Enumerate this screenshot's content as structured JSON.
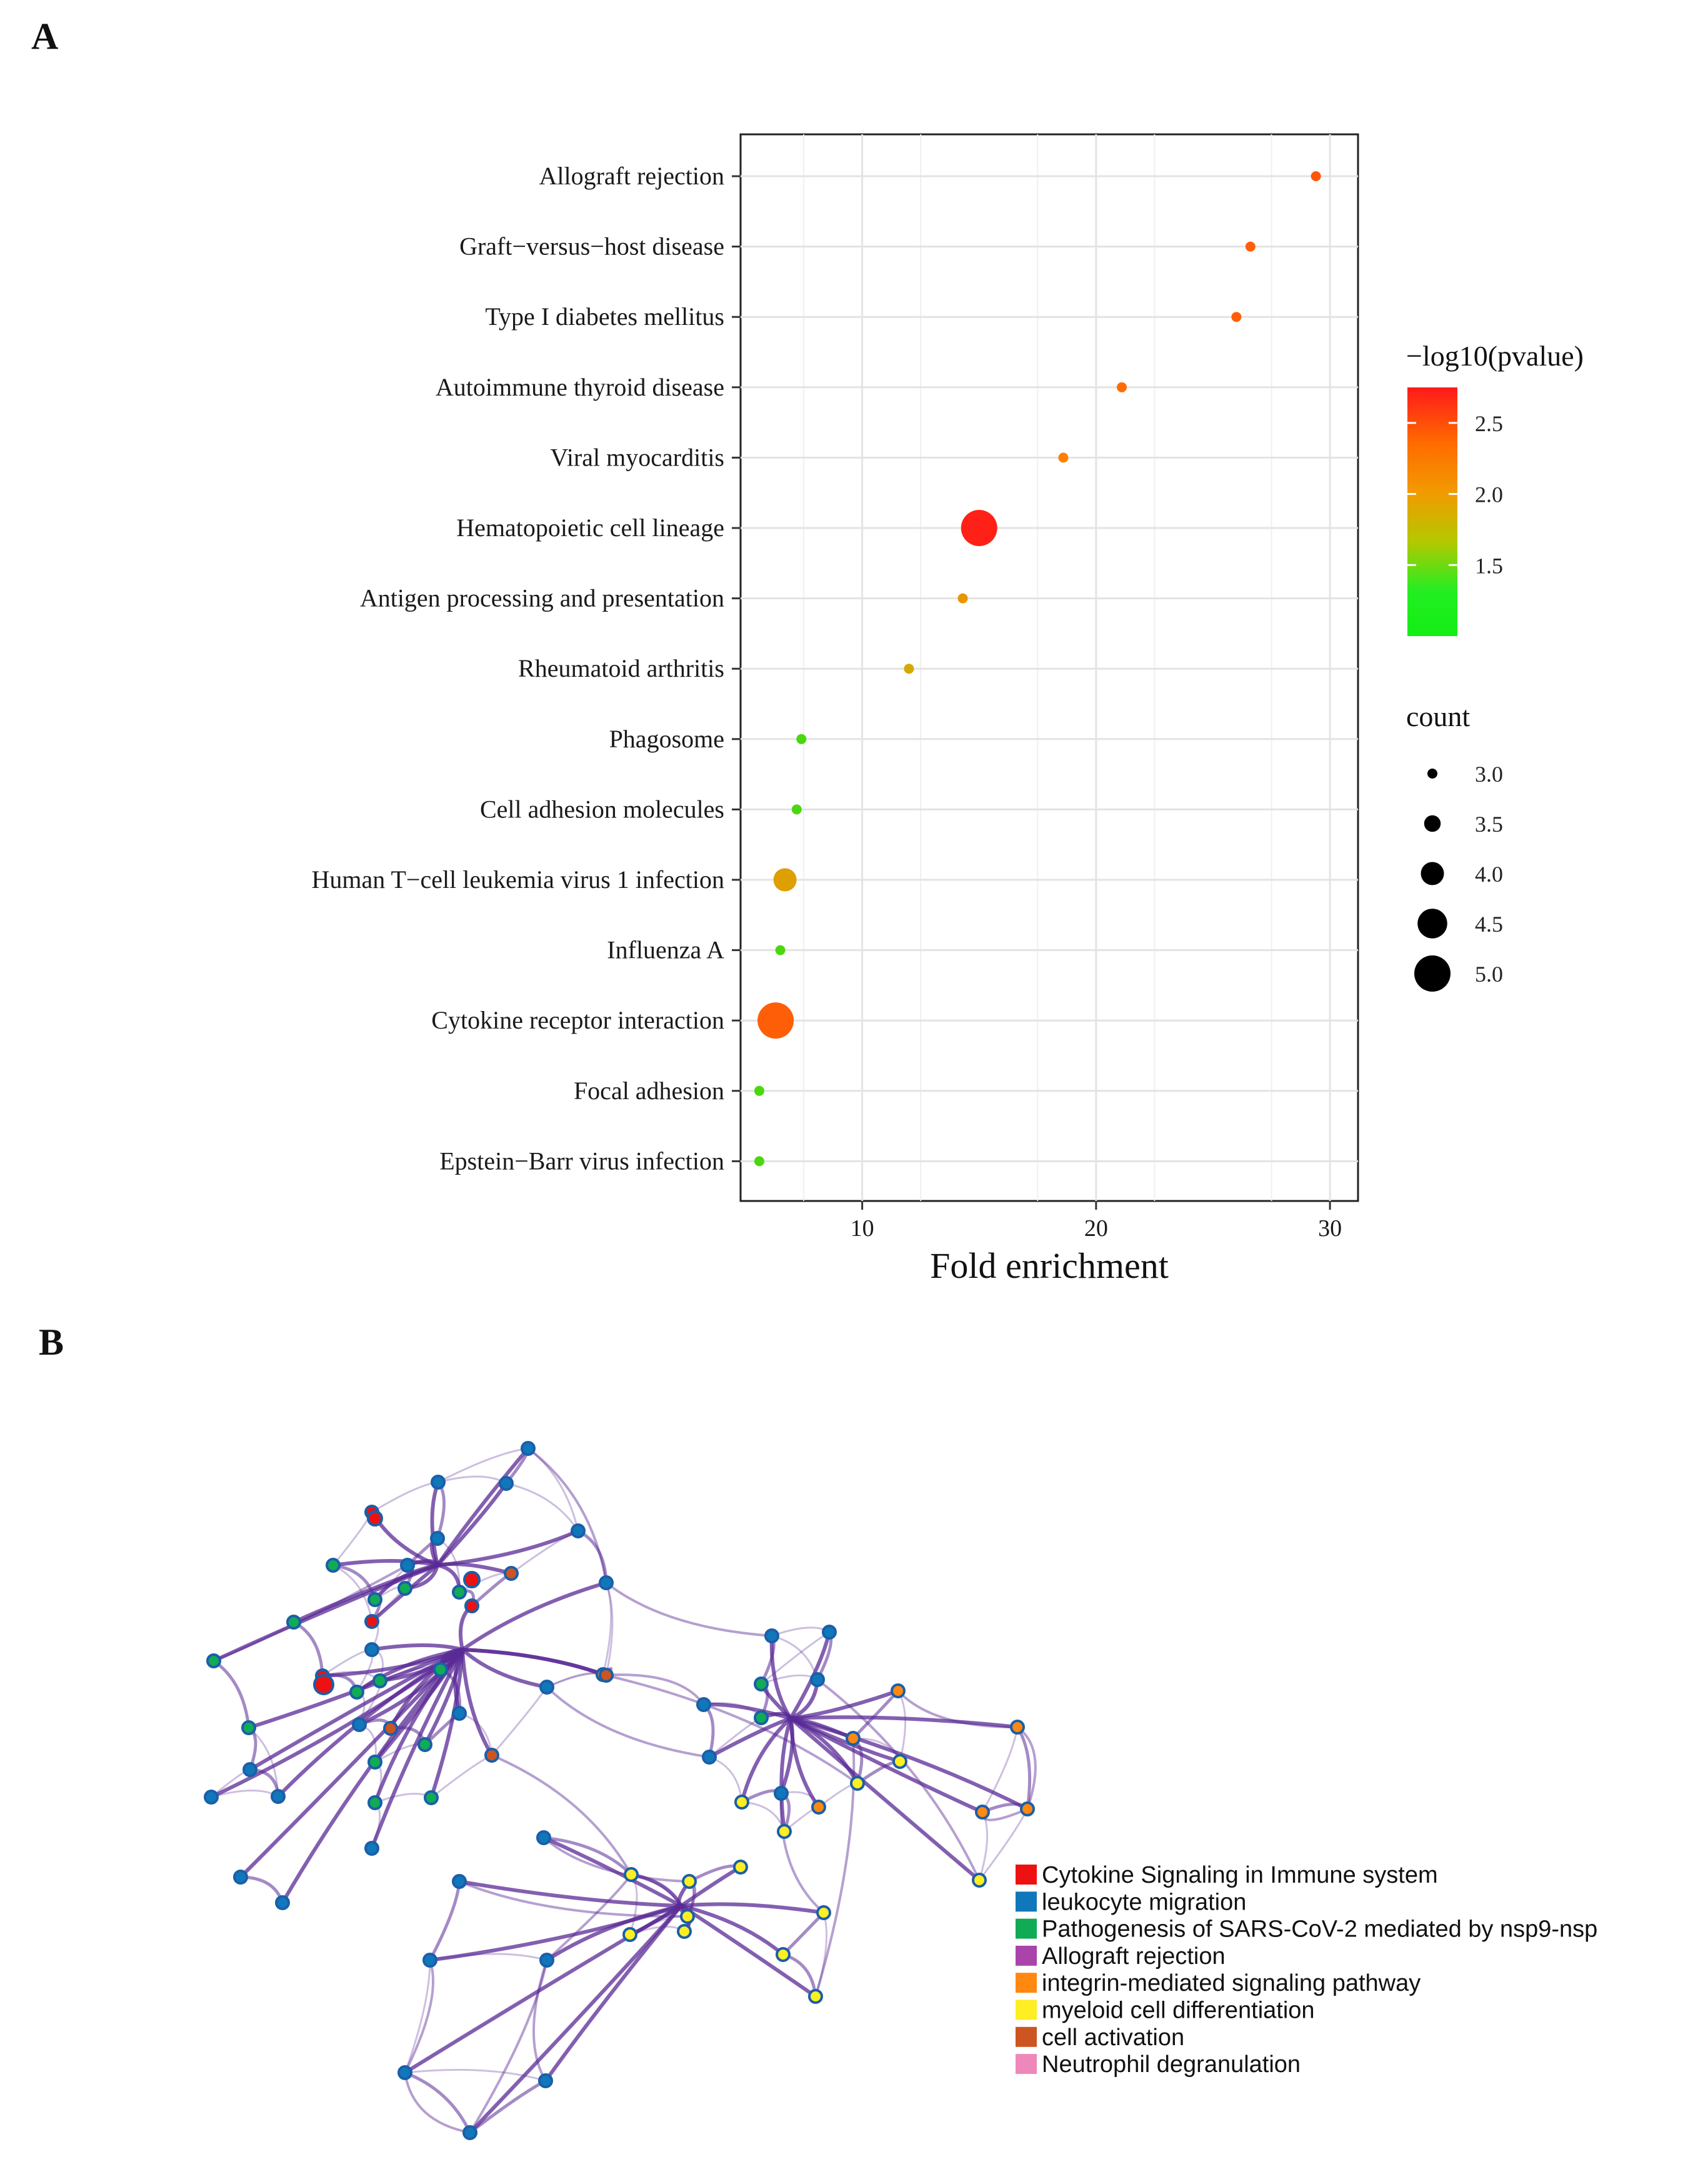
{
  "panels": {
    "a_label": "A",
    "b_label": "B"
  },
  "chart_data": {
    "type": "scatter",
    "subtype": "dot-plot",
    "xlabel": "Fold enrichment",
    "xlim": [
      4.8,
      31.2
    ],
    "xticks": [
      10,
      20,
      30
    ],
    "categories": [
      "Allograft rejection",
      "Graft−versus−host disease",
      "Type I diabetes mellitus",
      "Autoimmune thyroid disease",
      "Viral myocarditis",
      "Hematopoietic cell lineage",
      "Antigen processing and presentation",
      "Rheumatoid arthritis",
      "Phagosome",
      "Cell adhesion molecules",
      "Human T−cell leukemia virus 1 infection",
      "Influenza A",
      "Cytokine receptor interaction",
      "Focal adhesion",
      "Epstein−Barr virus infection"
    ],
    "fold_enrichment": [
      29.4,
      26.6,
      26.0,
      21.1,
      18.6,
      15.0,
      14.3,
      12.0,
      7.4,
      7.2,
      6.7,
      6.5,
      6.3,
      5.6,
      5.6
    ],
    "neg_log10_pvalue": [
      2.3,
      2.25,
      2.25,
      2.15,
      2.0,
      2.7,
      1.8,
      1.6,
      1.15,
      1.15,
      1.7,
      1.15,
      2.25,
      1.15,
      1.15
    ],
    "count": [
      3,
      3,
      3,
      3,
      3,
      5,
      3,
      3,
      3,
      3,
      4,
      3,
      5,
      3,
      3
    ],
    "color_legend": {
      "title": "−log10(pvalue)",
      "ticks": [
        "2.5",
        "2.0",
        "1.5"
      ],
      "tick_values": [
        2.5,
        2.0,
        1.5
      ],
      "range": [
        1.0,
        2.75
      ],
      "colors": [
        "#ff1a1a",
        "#ff8000",
        "#c8b400",
        "#14e614"
      ]
    },
    "size_legend": {
      "title": "count",
      "values": [
        3.0,
        3.5,
        4.0,
        4.5,
        5.0
      ],
      "labels": [
        "3.0",
        "3.5",
        "4.0",
        "4.5",
        "5.0"
      ]
    }
  },
  "network": {
    "legend": [
      {
        "label": "Cytokine Signaling in Immune system",
        "color": "#ee1111"
      },
      {
        "label": "leukocyte migration",
        "color": "#1177bb"
      },
      {
        "label": "Pathogenesis of SARS-CoV-2 mediated by nsp9-nsp",
        "color": "#11aa55"
      },
      {
        "label": "Allograft rejection",
        "color": "#aa44aa"
      },
      {
        "label": "integrin-mediated signaling pathway",
        "color": "#ff8811"
      },
      {
        "label": "myeloid cell differentiation",
        "color": "#ffee22"
      },
      {
        "label": "cell activation",
        "color": "#cc5522"
      },
      {
        "label": "Neutrophil degranulation",
        "color": "#ee88bb"
      }
    ],
    "edge_color": "#5a2a96"
  }
}
